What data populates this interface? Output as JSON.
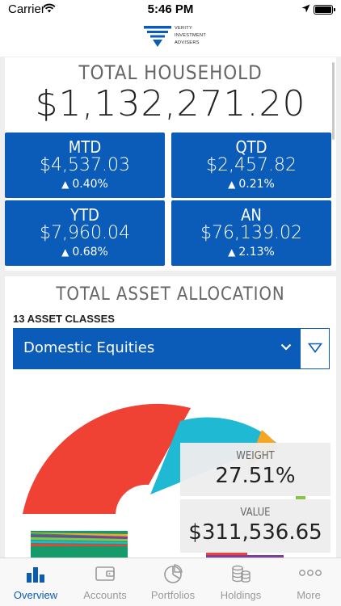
{
  "status_bar": {
    "carrier": "Carrier",
    "time": "5:46 PM"
  },
  "brand": {
    "line1": "VERITY",
    "line2": "INVESTMENT",
    "line3": "ADVISERS"
  },
  "household": {
    "title": "TOTAL HOUSEHOLD",
    "amount": "$1,132,271.20",
    "tiles": [
      {
        "label": "MTD",
        "value": "$4,537.03",
        "change": "0.40%"
      },
      {
        "label": "QTD",
        "value": "$2,457.82",
        "change": "0.21%"
      },
      {
        "label": "YTD",
        "value": "$7,960.04",
        "change": "0.68%"
      },
      {
        "label": "AN",
        "value": "$76,139.02",
        "change": "2.13%"
      }
    ]
  },
  "allocation": {
    "title": "TOTAL ASSET ALLOCATION",
    "asset_count": "13 ASSET CLASSES",
    "selected_class": "Domestic Equities",
    "weight_label": "WEIGHT",
    "weight_value": "27.51%",
    "value_label": "VALUE",
    "value_amount": "$311,536.65"
  },
  "colors": {
    "brand_blue": "#0b5cb8",
    "pie_red": "#f04135",
    "pie_cyan": "#1fb9d4",
    "pie_green": "#159a6a",
    "pie_orange": "#f5a623",
    "pie_purple": "#7b3fa0",
    "pie_lime": "#8bc34a"
  },
  "tabs": [
    {
      "label": "Overview",
      "icon": "bar-chart-icon",
      "active": true
    },
    {
      "label": "Accounts",
      "icon": "wallet-icon",
      "active": false
    },
    {
      "label": "Portfolios",
      "icon": "pie-chart-icon",
      "active": false
    },
    {
      "label": "Holdings",
      "icon": "coins-icon",
      "active": false
    },
    {
      "label": "More",
      "icon": "more-icon",
      "active": false
    }
  ]
}
